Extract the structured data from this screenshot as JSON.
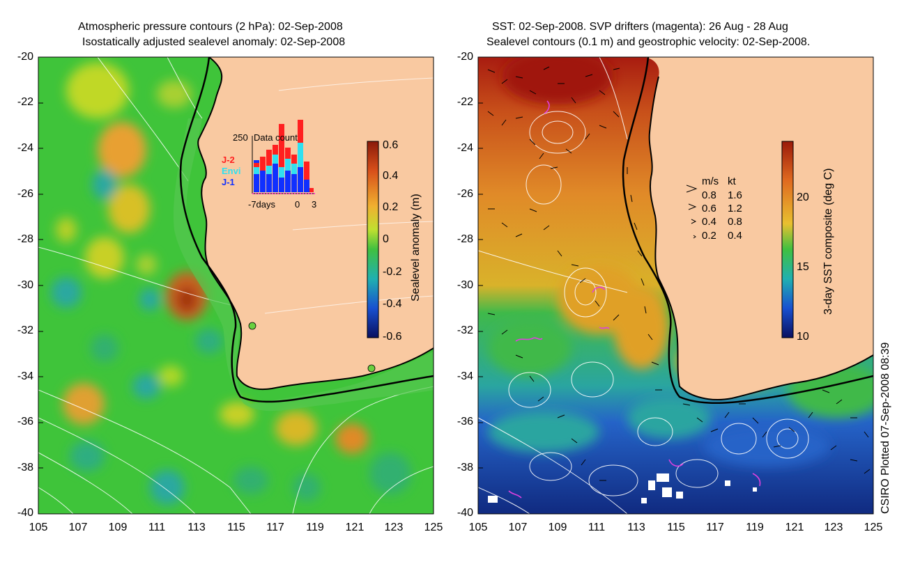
{
  "left_panel": {
    "title_line1": "Atmospheric pressure contours (2 hPa): 02-Sep-2008",
    "title_line2": "Isostatically adjusted sealevel anomaly: 02-Sep-2008",
    "y_ticks": [
      "-20",
      "-22",
      "-24",
      "-26",
      "-28",
      "-30",
      "-32",
      "-34",
      "-36",
      "-38",
      "-40"
    ],
    "x_ticks": [
      "105",
      "107",
      "109",
      "111",
      "113",
      "115",
      "117",
      "119",
      "121",
      "123",
      "125"
    ],
    "colorbar": {
      "label": "Sealevel anomaly (m)",
      "ticks": [
        "0.6",
        "0.4",
        "0.2",
        "0",
        "-0.2",
        "-0.4",
        "-0.6"
      ]
    },
    "inset": {
      "max_label": "250",
      "title": "Data count",
      "legend": [
        {
          "label": "J-2",
          "color": "#ff2020"
        },
        {
          "label": "Envi",
          "color": "#30e0f0"
        },
        {
          "label": "J-1",
          "color": "#1030ff"
        }
      ],
      "x_labels": [
        "-7days",
        "0",
        "3"
      ]
    }
  },
  "right_panel": {
    "title_line1": "SST: 02-Sep-2008. SVP drifters (magenta): 26 Aug - 28 Aug",
    "title_line2": "Sealevel contours (0.1 m) and geostrophic velocity: 02-Sep-2008.",
    "y_ticks": [
      "-20",
      "-22",
      "-24",
      "-26",
      "-28",
      "-30",
      "-32",
      "-34",
      "-36",
      "-38",
      "-40"
    ],
    "x_ticks": [
      "105",
      "107",
      "109",
      "111",
      "113",
      "115",
      "117",
      "119",
      "121",
      "123",
      "125"
    ],
    "colorbar": {
      "label": "3-day SST composite (deg C)",
      "ticks": [
        "20",
        "15",
        "10"
      ]
    },
    "velocity_legend": {
      "header_ms": "m/s",
      "header_kt": "kt",
      "rows": [
        {
          "ms": "0.8",
          "kt": "1.6"
        },
        {
          "ms": "0.6",
          "kt": "1.2"
        },
        {
          "ms": "0.4",
          "kt": "0.8"
        },
        {
          "ms": "0.2",
          "kt": "0.4"
        }
      ]
    }
  },
  "credit": "CSIRO Plotted 07-Sep-2008 08:39",
  "colors": {
    "land": "#f9c9a1",
    "coast": "#000000",
    "sla_base": "#3fc43a",
    "sst_warm": "#c84a10",
    "sst_cold": "#1a3fb0"
  }
}
